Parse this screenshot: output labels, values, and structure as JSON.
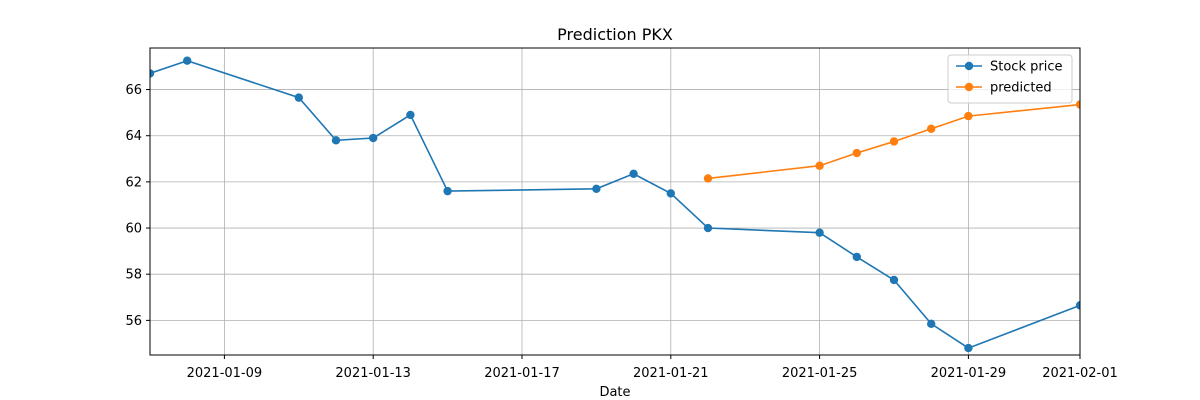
{
  "chart_data": {
    "type": "line",
    "title": "Prediction PKX",
    "xlabel": "Date",
    "ylabel": "",
    "x_type": "date",
    "xlim": [
      "2021-01-07",
      "2021-02-01"
    ],
    "ylim": [
      54.5,
      67.8
    ],
    "x_ticks": [
      "2021-01-09",
      "2021-01-13",
      "2021-01-17",
      "2021-01-21",
      "2021-01-25",
      "2021-01-29",
      "2021-02-01"
    ],
    "y_ticks": [
      56,
      58,
      60,
      62,
      64,
      66
    ],
    "grid": true,
    "legend_position": "top-right",
    "series": [
      {
        "name": "Stock price",
        "color": "#1f77b4",
        "marker": "circle",
        "x": [
          "2021-01-07",
          "2021-01-08",
          "2021-01-11",
          "2021-01-12",
          "2021-01-13",
          "2021-01-14",
          "2021-01-15",
          "2021-01-19",
          "2021-01-20",
          "2021-01-21",
          "2021-01-22",
          "2021-01-25",
          "2021-01-26",
          "2021-01-27",
          "2021-01-28",
          "2021-01-29",
          "2021-02-01"
        ],
        "values": [
          66.7,
          67.25,
          65.65,
          63.8,
          63.9,
          64.9,
          61.6,
          61.7,
          62.35,
          61.5,
          60.0,
          59.8,
          58.75,
          57.75,
          55.85,
          54.8,
          56.65
        ]
      },
      {
        "name": "predicted",
        "color": "#ff7f0e",
        "marker": "circle",
        "x": [
          "2021-01-22",
          "2021-01-25",
          "2021-01-26",
          "2021-01-27",
          "2021-01-28",
          "2021-01-29",
          "2021-02-01"
        ],
        "values": [
          62.15,
          62.7,
          63.25,
          63.75,
          64.3,
          64.85,
          65.35
        ]
      }
    ]
  }
}
